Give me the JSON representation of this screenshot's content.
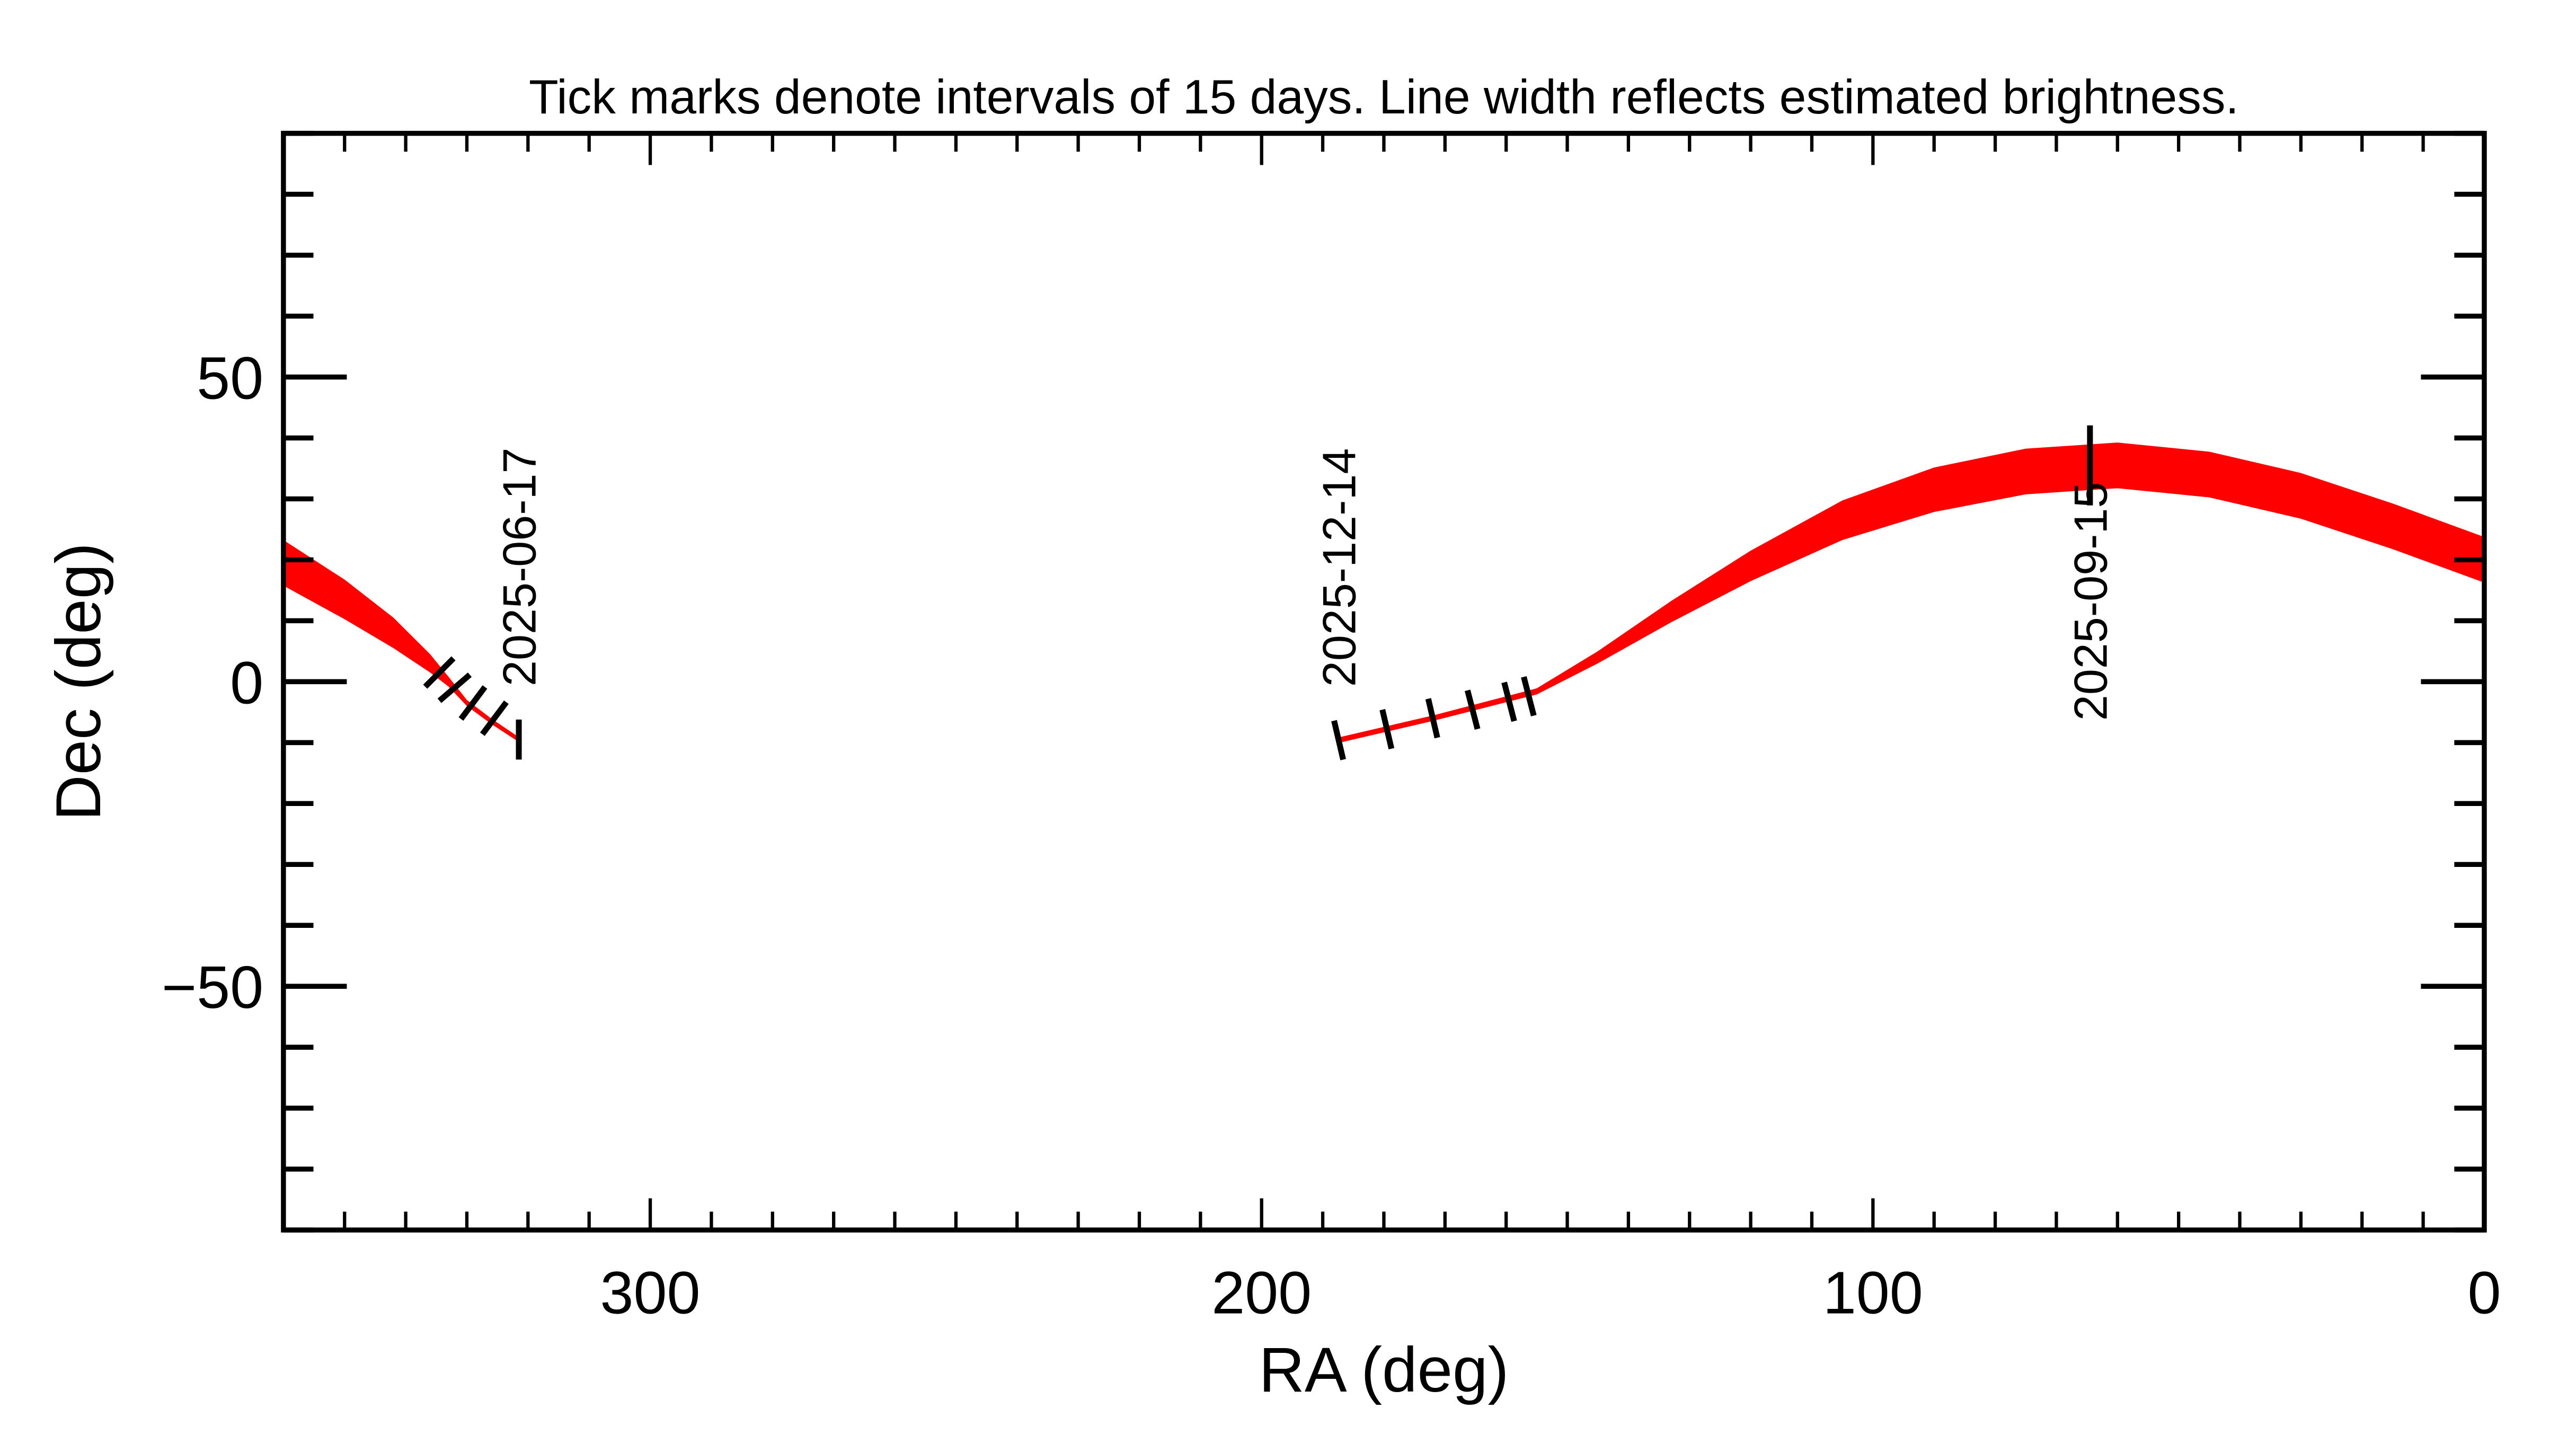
{
  "chart_data": {
    "type": "line",
    "title": "Tick marks denote intervals of 15 days.  Line width reflects estimated brightness.",
    "xlabel": "RA (deg)",
    "ylabel": "Dec (deg)",
    "xlim": [
      360,
      0
    ],
    "ylim": [
      -90,
      90
    ],
    "x_reversed": true,
    "x_ticks": [
      300,
      200,
      100,
      0
    ],
    "x_tick_labels": [
      "300",
      "200",
      "100",
      "0"
    ],
    "x_minor_step": 10,
    "y_ticks": [
      50,
      0,
      -50
    ],
    "y_tick_labels": [
      "50",
      "0",
      "−50"
    ],
    "y_minor_step": 10,
    "grid": false,
    "track_color": "#ff0000",
    "tick_color": "#000000",
    "series": [
      {
        "points": [
          {
            "ra": 360,
            "dec": 19.5,
            "width": 7.5
          },
          {
            "ra": 350,
            "dec": 13.5,
            "width": 6.5
          },
          {
            "ra": 342,
            "dec": 8,
            "width": 5
          },
          {
            "ra": 336,
            "dec": 3,
            "width": 3
          },
          {
            "ra": 333,
            "dec": 0,
            "width": 1.6
          },
          {
            "ra": 330,
            "dec": -3.5,
            "width": 1
          },
          {
            "ra": 326,
            "dec": -6.5,
            "width": 0.9
          },
          {
            "ra": 321.5,
            "dec": -9.5,
            "width": 0.8
          }
        ]
      },
      {
        "points": [
          {
            "ra": 187.4,
            "dec": -9.6,
            "width": 0.9
          },
          {
            "ra": 172,
            "dec": -6,
            "width": 0.9
          },
          {
            "ra": 155,
            "dec": -1.6,
            "width": 1
          },
          {
            "ra": 145,
            "dec": 4,
            "width": 2
          },
          {
            "ra": 133,
            "dec": 11.5,
            "width": 3.5
          },
          {
            "ra": 120,
            "dec": 19,
            "width": 5
          },
          {
            "ra": 105,
            "dec": 26.5,
            "width": 6.5
          },
          {
            "ra": 90,
            "dec": 31.5,
            "width": 7.3
          },
          {
            "ra": 75,
            "dec": 34.5,
            "width": 7.5
          },
          {
            "ra": 60,
            "dec": 35.5,
            "width": 7.5
          },
          {
            "ra": 45,
            "dec": 34,
            "width": 7.5
          },
          {
            "ra": 30,
            "dec": 30.5,
            "width": 7.5
          },
          {
            "ra": 15,
            "dec": 25.5,
            "width": 7.5
          },
          {
            "ra": 0,
            "dec": 20,
            "width": 7.5
          }
        ]
      }
    ],
    "time_ticks": [
      {
        "ra": 334.5,
        "dec": 1.5
      },
      {
        "ra": 332,
        "dec": -1
      },
      {
        "ra": 329,
        "dec": -3.5
      },
      {
        "ra": 325.5,
        "dec": -6
      },
      {
        "ra": 321.5,
        "dec": -9.5,
        "label": "2025-06-17"
      },
      {
        "ra": 187.4,
        "dec": -9.6,
        "label": "2025-12-14"
      },
      {
        "ra": 179.5,
        "dec": -7.8
      },
      {
        "ra": 172,
        "dec": -6
      },
      {
        "ra": 165.5,
        "dec": -4.6
      },
      {
        "ra": 159.5,
        "dec": -3.3
      },
      {
        "ra": 156.3,
        "dec": -2.4
      },
      {
        "ra": 64.5,
        "dec": 35.5,
        "label": "2025-09-15"
      }
    ]
  }
}
